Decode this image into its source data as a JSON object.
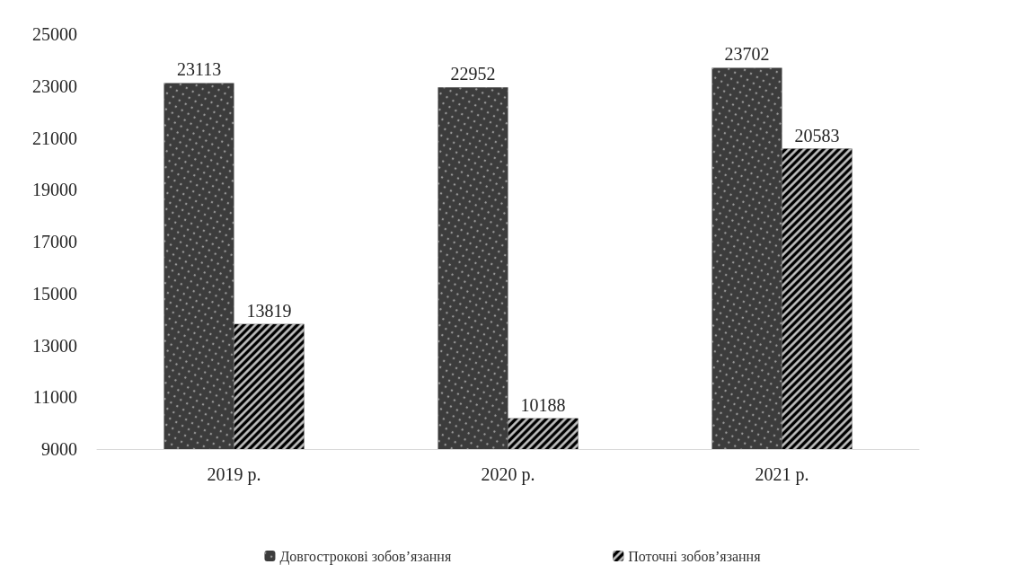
{
  "chart_data": {
    "type": "bar",
    "categories": [
      "2019 р.",
      "2020 р.",
      "2021 р."
    ],
    "series": [
      {
        "name": "Довгострокові зобов’язання",
        "color": "#3c3c3c",
        "values": [
          23113,
          22952,
          23702
        ]
      },
      {
        "name": "Поточні зобов’язання",
        "color": "#000000",
        "values": [
          13819,
          10188,
          20583
        ]
      }
    ],
    "ylim": [
      9000,
      25000
    ],
    "yticks": [
      9000,
      11000,
      13000,
      15000,
      17000,
      19000,
      21000,
      23000,
      25000
    ],
    "grid": false,
    "legend": "bottom",
    "data_labels": true
  }
}
